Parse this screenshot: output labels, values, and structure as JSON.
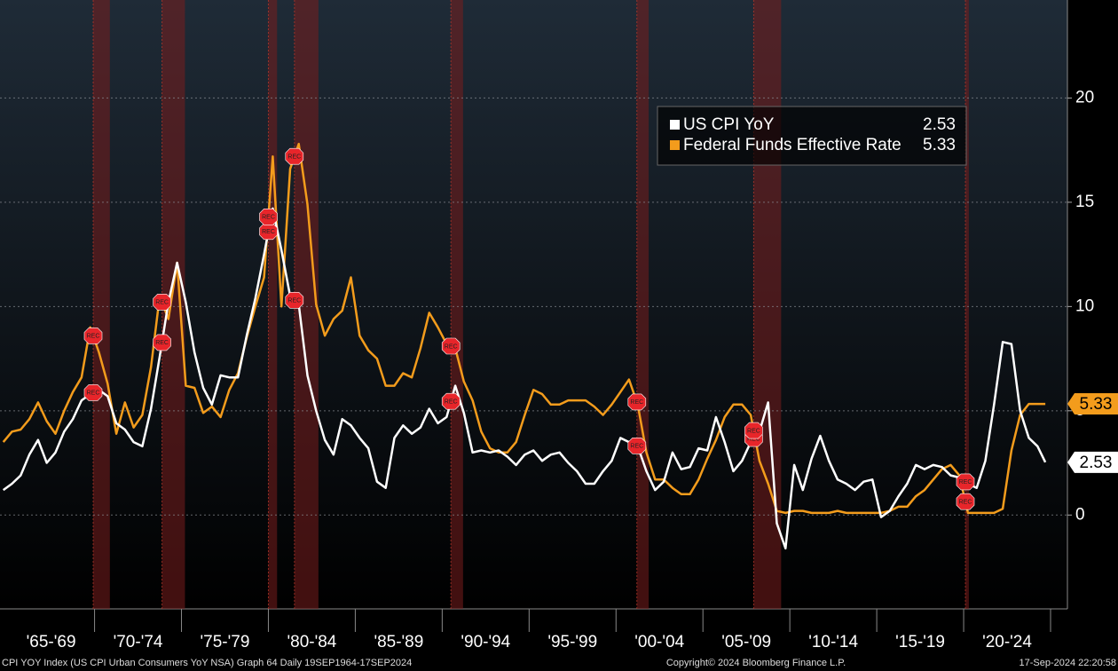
{
  "chart_data": {
    "type": "line",
    "footer_left": "CPI YOY Index (US CPI Urban Consumers YoY NSA) Graph 64  Daily 19SEP1964-17SEP2024",
    "footer_center": "Copyright© 2024 Bloomberg Finance L.P.",
    "footer_right": "17-Sep-2024 22:20:58",
    "recession_marker": "REC",
    "recessions": [
      [
        1969.92,
        1970.88
      ],
      [
        1973.88,
        1975.2
      ],
      [
        1980.0,
        1980.5
      ],
      [
        1981.5,
        1982.88
      ],
      [
        1990.5,
        1991.2
      ],
      [
        2001.2,
        2001.88
      ],
      [
        2007.92,
        2009.5
      ],
      [
        2020.1,
        2020.3
      ]
    ],
    "xlim": [
      1964.56,
      2025.97
    ],
    "ylim": [
      -4.5,
      24.7
    ],
    "yticks": [
      0,
      5,
      10,
      15,
      20
    ],
    "grid": true,
    "xticks": [
      {
        "value": 1967.5,
        "label": "'65-'69"
      },
      {
        "value": 1972.5,
        "label": "'70-'74"
      },
      {
        "value": 1977.5,
        "label": "'75-'79"
      },
      {
        "value": 1982.5,
        "label": "'80-'84"
      },
      {
        "value": 1987.5,
        "label": "'85-'89"
      },
      {
        "value": 1992.5,
        "label": "'90-'94"
      },
      {
        "value": 1997.5,
        "label": "'95-'99"
      },
      {
        "value": 2002.5,
        "label": "'00-'04"
      },
      {
        "value": 2007.5,
        "label": "'05-'09"
      },
      {
        "value": 2012.5,
        "label": "'10-'14"
      },
      {
        "value": 2017.5,
        "label": "'15-'19"
      },
      {
        "value": 2022.5,
        "label": "'20-'24"
      }
    ],
    "x": [
      1964.75,
      1965.25,
      1965.75,
      1966.25,
      1966.75,
      1967.25,
      1967.75,
      1968.25,
      1968.75,
      1969.25,
      1969.75,
      1970.25,
      1970.75,
      1971.25,
      1971.75,
      1972.25,
      1972.75,
      1973.25,
      1973.75,
      1974.25,
      1974.75,
      1975.25,
      1975.75,
      1976.25,
      1976.75,
      1977.25,
      1977.75,
      1978.25,
      1978.75,
      1979.25,
      1979.75,
      1980.25,
      1980.75,
      1981.25,
      1981.75,
      1982.25,
      1982.75,
      1983.25,
      1983.75,
      1984.25,
      1984.75,
      1985.25,
      1985.75,
      1986.25,
      1986.75,
      1987.25,
      1987.75,
      1988.25,
      1988.75,
      1989.25,
      1989.75,
      1990.25,
      1990.75,
      1991.25,
      1991.75,
      1992.25,
      1992.75,
      1993.25,
      1993.75,
      1994.25,
      1994.75,
      1995.25,
      1995.75,
      1996.25,
      1996.75,
      1997.25,
      1997.75,
      1998.25,
      1998.75,
      1999.25,
      1999.75,
      2000.25,
      2000.75,
      2001.25,
      2001.75,
      2002.25,
      2002.75,
      2003.25,
      2003.75,
      2004.25,
      2004.75,
      2005.25,
      2005.75,
      2006.25,
      2006.75,
      2007.25,
      2007.75,
      2008.25,
      2008.75,
      2009.25,
      2009.75,
      2010.25,
      2010.75,
      2011.25,
      2011.75,
      2012.25,
      2012.75,
      2013.25,
      2013.75,
      2014.25,
      2014.75,
      2015.25,
      2015.75,
      2016.25,
      2016.75,
      2017.25,
      2017.75,
      2018.25,
      2018.75,
      2019.25,
      2019.75,
      2020.25,
      2020.75,
      2021.25,
      2021.75,
      2022.25,
      2022.75,
      2023.25,
      2023.75,
      2024.25,
      2024.7
    ],
    "series": [
      {
        "name": "US CPI YoY",
        "color": "#ffffff",
        "values": [
          1.2,
          1.5,
          1.9,
          2.9,
          3.6,
          2.5,
          3.0,
          4.0,
          4.6,
          5.5,
          5.8,
          6.0,
          5.7,
          4.4,
          4.1,
          3.5,
          3.3,
          5.1,
          7.6,
          10.2,
          12.1,
          10.2,
          7.8,
          6.1,
          5.3,
          6.7,
          6.6,
          6.6,
          8.6,
          10.4,
          12.5,
          14.7,
          12.7,
          10.5,
          10.1,
          6.7,
          5.0,
          3.6,
          2.9,
          4.6,
          4.3,
          3.7,
          3.2,
          1.6,
          1.3,
          3.7,
          4.3,
          3.9,
          4.2,
          5.1,
          4.4,
          4.7,
          6.2,
          4.9,
          3.0,
          3.1,
          3.0,
          3.1,
          2.8,
          2.4,
          2.9,
          3.1,
          2.6,
          2.9,
          3.0,
          2.5,
          2.1,
          1.5,
          1.5,
          2.1,
          2.6,
          3.7,
          3.5,
          3.3,
          2.1,
          1.2,
          1.6,
          3.0,
          2.2,
          2.3,
          3.2,
          3.1,
          4.7,
          3.5,
          2.1,
          2.6,
          3.5,
          4.0,
          5.4,
          -0.4,
          -1.6,
          2.4,
          1.2,
          2.7,
          3.8,
          2.6,
          1.7,
          1.5,
          1.2,
          1.6,
          1.7,
          -0.1,
          0.2,
          0.9,
          1.5,
          2.4,
          2.2,
          2.4,
          2.3,
          1.9,
          1.8,
          1.5,
          1.3,
          2.6,
          5.3,
          8.3,
          8.2,
          5.0,
          3.7,
          3.3,
          2.53
        ]
      },
      {
        "name": "Federal Funds Effective Rate",
        "color": "#f39c1c",
        "values": [
          3.5,
          4.0,
          4.1,
          4.6,
          5.4,
          4.5,
          3.9,
          5.0,
          5.9,
          6.6,
          9.0,
          7.8,
          6.3,
          3.9,
          5.4,
          4.2,
          4.8,
          7.1,
          10.5,
          9.4,
          12.1,
          6.2,
          6.1,
          4.9,
          5.2,
          4.7,
          6.0,
          6.8,
          8.5,
          10.0,
          11.4,
          17.2,
          10.0,
          16.6,
          17.8,
          14.9,
          10.1,
          8.6,
          9.4,
          9.8,
          11.4,
          8.6,
          7.9,
          7.5,
          6.2,
          6.2,
          6.8,
          6.6,
          8.0,
          9.7,
          9.0,
          8.2,
          8.0,
          6.4,
          5.5,
          4.0,
          3.2,
          3.0,
          3.0,
          3.5,
          4.8,
          6.0,
          5.8,
          5.3,
          5.3,
          5.5,
          5.5,
          5.5,
          5.2,
          4.8,
          5.3,
          5.9,
          6.5,
          5.3,
          3.0,
          1.7,
          1.7,
          1.3,
          1.0,
          1.0,
          1.7,
          2.7,
          3.6,
          4.7,
          5.3,
          5.3,
          4.8,
          2.6,
          1.5,
          0.2,
          0.1,
          0.2,
          0.2,
          0.1,
          0.1,
          0.1,
          0.2,
          0.1,
          0.1,
          0.1,
          0.1,
          0.1,
          0.2,
          0.4,
          0.4,
          0.9,
          1.2,
          1.7,
          2.2,
          2.4,
          1.9,
          0.1,
          0.1,
          0.1,
          0.1,
          0.3,
          3.1,
          4.8,
          5.33,
          5.33,
          5.33
        ]
      }
    ]
  }
}
